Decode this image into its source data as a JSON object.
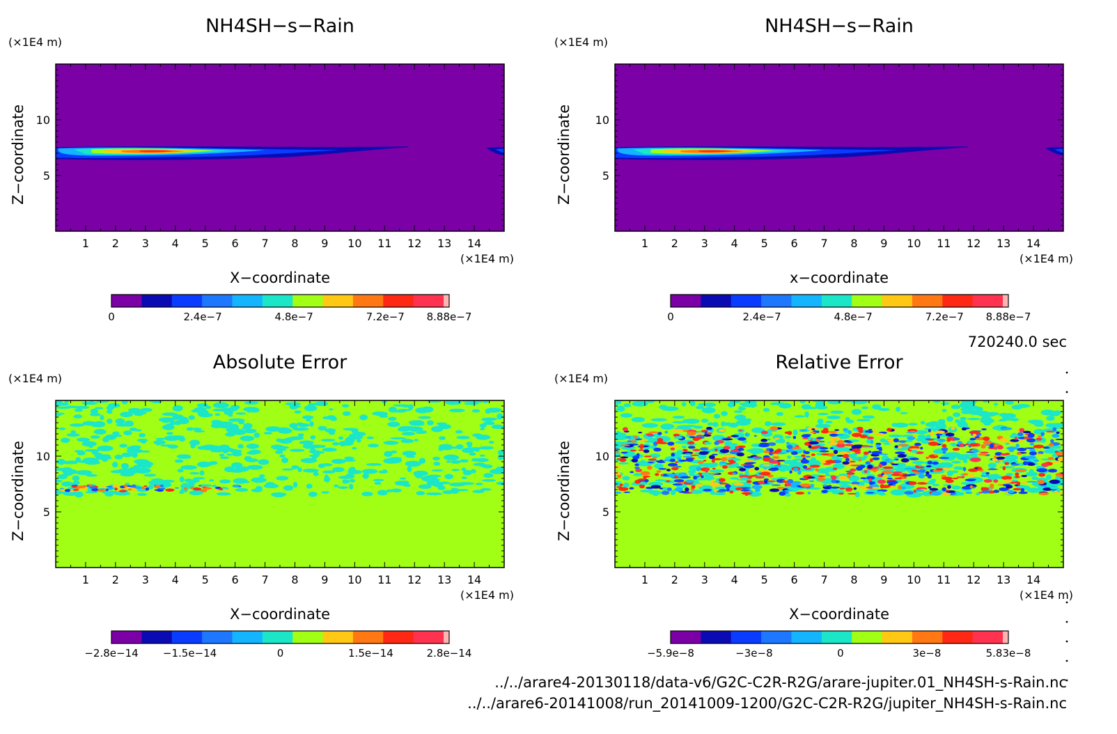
{
  "figure": {
    "time_label": "720240.0 sec",
    "files": [
      "../../arare4-20130118/data-v6/G2C-C2R-R2G/arare-jupiter.01_NH4SH-s-Rain.nc",
      "../../arare6-20141008/run_20141009-1200/G2C-C2R-R2G/jupiter_NH4SH-s-Rain.nc"
    ]
  },
  "chart_data": [
    {
      "type": "heatmap",
      "title": "NH4SH-s-Rain",
      "xlabel": "X-coordinate",
      "ylabel": "Z-coordinate",
      "x_unit": "(x1E4 m)",
      "y_unit": "(x1E4 m)",
      "xlim": [
        0,
        15
      ],
      "ylim": [
        0,
        15
      ],
      "x_ticks": [
        1,
        2,
        3,
        4,
        5,
        6,
        7,
        8,
        9,
        10,
        11,
        12,
        13,
        14
      ],
      "y_ticks": [
        5,
        10
      ],
      "field": "thin rain layer near z≈7 (x1E4 m), maximum near x≈2–4, thinning toward x≈12, small patch at the right edge",
      "colorbar": {
        "min": 0,
        "max": 8.88e-07,
        "tick_values": [
          0,
          2.4e-07,
          4.8e-07,
          7.2e-07,
          8.88e-07
        ],
        "tick_labels": [
          "0",
          "2.4e-7",
          "4.8e-7",
          "7.2e-7",
          "8.88e-7"
        ],
        "colors": [
          "#7b00a6",
          "#0b0bb4",
          "#0a3cff",
          "#1e78ff",
          "#14b4ff",
          "#1be6c8",
          "#a0ff14",
          "#ffc814",
          "#ff7814",
          "#ff2814",
          "#ff3250",
          "#ffb4b4"
        ]
      }
    },
    {
      "type": "heatmap",
      "title": "NH4SH-s-Rain",
      "xlabel": "x-coordinate",
      "ylabel": "Z-coordinate",
      "x_unit": "(x1E4 m)",
      "y_unit": "(x1E4 m)",
      "xlim": [
        0,
        15
      ],
      "ylim": [
        0,
        15
      ],
      "x_ticks": [
        1,
        2,
        3,
        4,
        5,
        6,
        7,
        8,
        9,
        10,
        11,
        12,
        13,
        14
      ],
      "y_ticks": [
        5,
        10
      ],
      "field": "same as left panel",
      "colorbar": {
        "min": 0,
        "max": 8.88e-07,
        "tick_values": [
          0,
          2.4e-07,
          4.8e-07,
          7.2e-07,
          8.88e-07
        ],
        "tick_labels": [
          "0",
          "2.4e-7",
          "4.8e-7",
          "7.2e-7",
          "8.88e-7"
        ],
        "colors": [
          "#7b00a6",
          "#0b0bb4",
          "#0a3cff",
          "#1e78ff",
          "#14b4ff",
          "#1be6c8",
          "#a0ff14",
          "#ffc814",
          "#ff7814",
          "#ff2814",
          "#ff3250",
          "#ffb4b4"
        ]
      }
    },
    {
      "type": "heatmap",
      "title": "Absolute Error",
      "xlabel": "X-coordinate",
      "ylabel": "Z-coordinate",
      "x_unit": "(x1E4 m)",
      "y_unit": "(x1E4 m)",
      "xlim": [
        0,
        15
      ],
      "ylim": [
        0,
        15
      ],
      "x_ticks": [
        1,
        2,
        3,
        4,
        5,
        6,
        7,
        8,
        9,
        10,
        11,
        12,
        13,
        14
      ],
      "y_ticks": [
        5,
        10
      ],
      "field": "zero below z≈6.5; small noisy values (cyan/green) above; thin band near z≈7 for x<6",
      "colorbar": {
        "min": -2.8e-14,
        "max": 2.8e-14,
        "tick_values": [
          -2.8e-14,
          -1.5e-14,
          0,
          1.5e-14,
          2.8e-14
        ],
        "tick_labels": [
          "-2.8e-14",
          "-1.5e-14",
          "0",
          "1.5e-14",
          "2.8e-14"
        ],
        "colors": [
          "#7b00a6",
          "#0b0bb4",
          "#0a3cff",
          "#1e78ff",
          "#14b4ff",
          "#1be6c8",
          "#a0ff14",
          "#ffc814",
          "#ff7814",
          "#ff2814",
          "#ff3250",
          "#ffb4b4"
        ]
      }
    },
    {
      "type": "heatmap",
      "title": "Relative Error",
      "xlabel": "X-coordinate",
      "ylabel": "Z-coordinate",
      "x_unit": "(x1E4 m)",
      "y_unit": "(x1E4 m)",
      "xlim": [
        0,
        15
      ],
      "ylim": [
        0,
        15
      ],
      "x_ticks": [
        1,
        2,
        3,
        4,
        5,
        6,
        7,
        8,
        9,
        10,
        11,
        12,
        13,
        14
      ],
      "y_ticks": [
        5,
        10
      ],
      "field": "zero below z≈6.5; strong noisy blue/red structure between z≈6.5 and z≈12.5; weak noise above",
      "colorbar": {
        "min": -5.9e-08,
        "max": 5.83e-08,
        "tick_values": [
          -5.9e-08,
          -3e-08,
          0,
          3e-08,
          5.83e-08
        ],
        "tick_labels": [
          "-5.9e-8",
          "-3e-8",
          "0",
          "3e-8",
          "5.83e-8"
        ],
        "colors": [
          "#7b00a6",
          "#0b0bb4",
          "#0a3cff",
          "#1e78ff",
          "#14b4ff",
          "#1be6c8",
          "#a0ff14",
          "#ffc814",
          "#ff7814",
          "#ff2814",
          "#ff3250",
          "#ffb4b4"
        ]
      }
    }
  ]
}
